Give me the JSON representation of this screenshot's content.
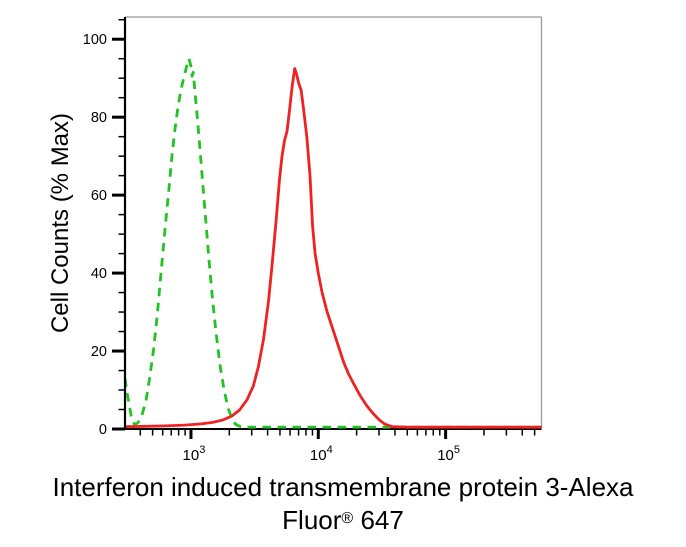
{
  "figure": {
    "ylabel": "Cell Counts (% Max)",
    "caption_line1": "Interferon induced transmembrane protein 3-Alexa",
    "caption_line2": {
      "pre": "Fluor",
      "sup": "®",
      "post": " 647"
    }
  },
  "chart_data": {
    "type": "line",
    "subtype": "flow-cytometry-histogram-overlay",
    "title": "",
    "xlabel": "Interferon induced transmembrane protein 3-Alexa Fluor® 647",
    "ylabel": "Cell Counts (% Max)",
    "x_scale": "log10",
    "x_range_log10": [
      2.482,
      5.753
    ],
    "ylim": [
      0,
      105.7
    ],
    "grid": false,
    "legend_position": "none",
    "background_color": "#ffffff",
    "axis_color": "#000000",
    "frame_color": "#999999",
    "y_ticks_major": [
      0,
      20,
      40,
      60,
      80,
      100
    ],
    "y_minor_step": 5,
    "x_ticks_major": [
      {
        "log10": 3,
        "label_base": "10",
        "label_exp": "3"
      },
      {
        "log10": 4,
        "label_base": "10",
        "label_exp": "4"
      },
      {
        "log10": 5,
        "label_base": "10",
        "label_exp": "5"
      }
    ],
    "x_minor_mantissas": [
      2,
      3,
      4,
      5,
      6,
      7,
      8,
      9
    ],
    "x_minor_decades": [
      2,
      3,
      4,
      5
    ],
    "series": [
      {
        "name": "green-dashed-histogram",
        "color": "#22c322",
        "line_style": "dashed",
        "peak": {
          "x_log10": 2.985,
          "pct_max": 95
        },
        "points_log10x_pct": [
          [
            2.482,
            13
          ],
          [
            2.5,
            9
          ],
          [
            2.53,
            3.5
          ],
          [
            2.555,
            1.2
          ],
          [
            2.58,
            1.5
          ],
          [
            2.61,
            3
          ],
          [
            2.645,
            7
          ],
          [
            2.675,
            13
          ],
          [
            2.705,
            20
          ],
          [
            2.735,
            29
          ],
          [
            2.765,
            40
          ],
          [
            2.795,
            51
          ],
          [
            2.825,
            61
          ],
          [
            2.85,
            70
          ],
          [
            2.875,
            77
          ],
          [
            2.9,
            83
          ],
          [
            2.925,
            87.5
          ],
          [
            2.95,
            91
          ],
          [
            2.97,
            93.5
          ],
          [
            2.985,
            95
          ],
          [
            3.0,
            93
          ],
          [
            3.008,
            90.5
          ],
          [
            3.018,
            91.5
          ],
          [
            3.03,
            87
          ],
          [
            3.05,
            80
          ],
          [
            3.07,
            72
          ],
          [
            3.09,
            64
          ],
          [
            3.115,
            54
          ],
          [
            3.14,
            44
          ],
          [
            3.17,
            33
          ],
          [
            3.2,
            24
          ],
          [
            3.23,
            16
          ],
          [
            3.26,
            10
          ],
          [
            3.29,
            5.5
          ],
          [
            3.32,
            2.8
          ],
          [
            3.35,
            1.2
          ],
          [
            3.39,
            0.6
          ],
          [
            3.45,
            0.5
          ],
          [
            3.6,
            0.5
          ],
          [
            3.8,
            0.5
          ],
          [
            4.0,
            0.5
          ],
          [
            4.2,
            0.5
          ],
          [
            4.4,
            0.5
          ],
          [
            4.6,
            0.5
          ],
          [
            4.8,
            0.5
          ],
          [
            5.0,
            0.5
          ],
          [
            5.2,
            0.5
          ],
          [
            5.4,
            0.5
          ],
          [
            5.6,
            0.5
          ],
          [
            5.753,
            0.5
          ]
        ]
      },
      {
        "name": "red-solid-histogram",
        "color": "#ee2222",
        "line_style": "solid",
        "peak": {
          "x_log10": 3.815,
          "pct_max": 92.5
        },
        "points_log10x_pct": [
          [
            2.482,
            0.6
          ],
          [
            2.65,
            0.7
          ],
          [
            2.8,
            0.8
          ],
          [
            2.95,
            1.0
          ],
          [
            3.08,
            1.3
          ],
          [
            3.17,
            1.7
          ],
          [
            3.25,
            2.3
          ],
          [
            3.32,
            3.3
          ],
          [
            3.38,
            4.8
          ],
          [
            3.44,
            7.5
          ],
          [
            3.49,
            11
          ],
          [
            3.53,
            16
          ],
          [
            3.57,
            23
          ],
          [
            3.61,
            33
          ],
          [
            3.64,
            43
          ],
          [
            3.67,
            54
          ],
          [
            3.695,
            64
          ],
          [
            3.715,
            70
          ],
          [
            3.735,
            74
          ],
          [
            3.755,
            76.5
          ],
          [
            3.775,
            82
          ],
          [
            3.795,
            88
          ],
          [
            3.815,
            92.5
          ],
          [
            3.83,
            91
          ],
          [
            3.848,
            88.5
          ],
          [
            3.865,
            87
          ],
          [
            3.885,
            82
          ],
          [
            3.91,
            75
          ],
          [
            3.935,
            65
          ],
          [
            3.955,
            52
          ],
          [
            3.975,
            45
          ],
          [
            4.0,
            40
          ],
          [
            4.03,
            35
          ],
          [
            4.07,
            30
          ],
          [
            4.12,
            25
          ],
          [
            4.16,
            21
          ],
          [
            4.2,
            17
          ],
          [
            4.24,
            14
          ],
          [
            4.28,
            11.5
          ],
          [
            4.33,
            8.5
          ],
          [
            4.38,
            6
          ],
          [
            4.43,
            4
          ],
          [
            4.48,
            2.3
          ],
          [
            4.52,
            1.3
          ],
          [
            4.58,
            0.6
          ],
          [
            4.7,
            0.45
          ],
          [
            4.9,
            0.45
          ],
          [
            5.1,
            0.45
          ],
          [
            5.3,
            0.45
          ],
          [
            5.5,
            0.45
          ],
          [
            5.753,
            0.45
          ]
        ]
      }
    ]
  }
}
